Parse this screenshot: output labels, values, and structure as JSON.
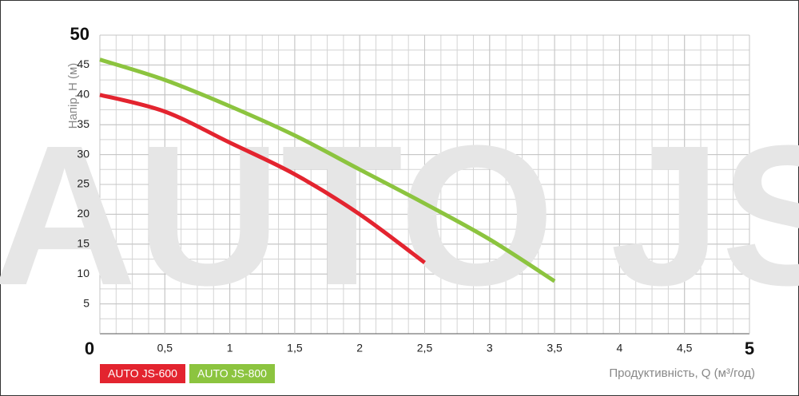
{
  "chart_data": {
    "type": "line",
    "watermark": "AUTO JS",
    "xlabel": "Продуктивність, Q (м³/год)",
    "ylabel": "Напір, Н (м)",
    "xlim": [
      0,
      5
    ],
    "ylim": [
      0,
      50
    ],
    "xticks": [
      0,
      {
        "value": 0.5,
        "label": "0,5"
      },
      1,
      {
        "value": 1.5,
        "label": "1,5"
      },
      2,
      {
        "value": 2.5,
        "label": "2,5"
      },
      3,
      {
        "value": 3.5,
        "label": "3,5"
      },
      4,
      {
        "value": 4.5,
        "label": "4,5"
      },
      5
    ],
    "yticks": [
      5,
      10,
      15,
      20,
      25,
      30,
      35,
      40,
      45,
      50
    ],
    "grid": true,
    "series": [
      {
        "name": "AUTO JS-600",
        "color": "#e3242f",
        "x": [
          0,
          0.5,
          1,
          1.5,
          2,
          2.5
        ],
        "values": [
          40,
          37.2,
          32,
          26.7,
          20,
          11.9
        ]
      },
      {
        "name": "AUTO JS-800",
        "color": "#8cc43f",
        "x": [
          0,
          0.5,
          1,
          1.5,
          2,
          2.5,
          3,
          3.5
        ],
        "values": [
          45.9,
          42.5,
          38.1,
          33.2,
          27.5,
          21.8,
          15.8,
          8.8
        ]
      }
    ]
  }
}
